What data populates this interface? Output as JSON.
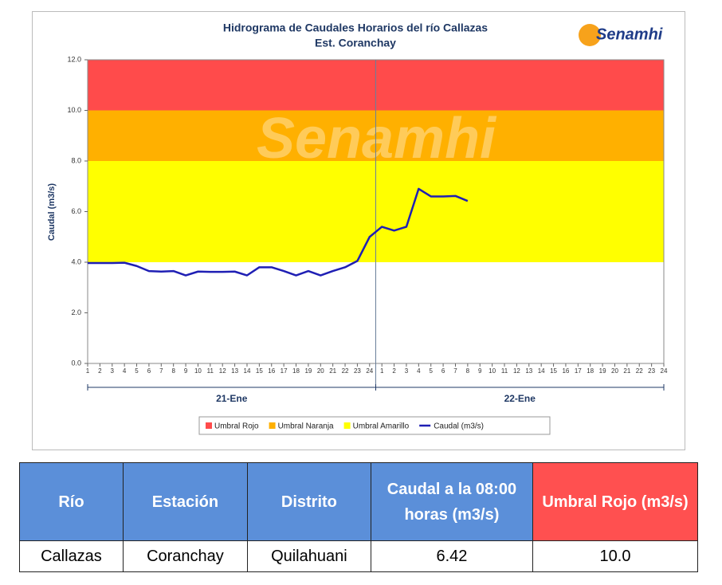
{
  "chart_data": {
    "type": "line",
    "title": "Hidrograma de Caudales Horarios del río Callazas",
    "subtitle": "Est. Coranchay",
    "logo": "Senamhi",
    "y_label": "Caudal (m3/s)",
    "categories": [
      "1",
      "2",
      "3",
      "4",
      "5",
      "6",
      "7",
      "8",
      "9",
      "10",
      "11",
      "12",
      "13",
      "14",
      "15",
      "16",
      "17",
      "18",
      "19",
      "20",
      "21",
      "22",
      "23",
      "24",
      "1",
      "2",
      "3",
      "4",
      "5",
      "6",
      "7",
      "8",
      "9",
      "10",
      "11",
      "12",
      "13",
      "14",
      "15",
      "16",
      "17",
      "18",
      "19",
      "20",
      "21",
      "22",
      "23",
      "24"
    ],
    "x_groups": [
      "21-Ene",
      "22-Ene"
    ],
    "ylim": [
      0,
      12
    ],
    "yticks": [
      {
        "value": 0,
        "label": "0.0"
      },
      {
        "value": 2,
        "label": "2.0"
      },
      {
        "value": 4,
        "label": "4.0"
      },
      {
        "value": 6,
        "label": "6.0"
      },
      {
        "value": 8,
        "label": "8.0"
      },
      {
        "value": 10,
        "label": "10.0"
      },
      {
        "value": 12,
        "label": "12.0"
      }
    ],
    "bands": [
      {
        "name": "Umbral Rojo",
        "color": "#ff4b4b",
        "from": 10,
        "to": 12
      },
      {
        "name": "Umbral Naranja",
        "color": "#ffb000",
        "from": 8,
        "to": 10
      },
      {
        "name": "Umbral Amarillo",
        "color": "#ffff00",
        "from": 4,
        "to": 8
      }
    ],
    "series": [
      {
        "name": "Caudal (m3/s)",
        "color": "#1f1fb4",
        "values": [
          3.97,
          3.97,
          3.97,
          3.98,
          3.85,
          3.65,
          3.63,
          3.65,
          3.48,
          3.63,
          3.62,
          3.62,
          3.63,
          3.48,
          3.8,
          3.8,
          3.65,
          3.48,
          3.65,
          3.48,
          3.65,
          3.8,
          4.05,
          5.0,
          5.4,
          5.25,
          5.4,
          6.9,
          6.6,
          6.6,
          6.62,
          6.42,
          null,
          null,
          null,
          null,
          null,
          null,
          null,
          null,
          null,
          null,
          null,
          null,
          null,
          null,
          null,
          null
        ]
      }
    ]
  },
  "table": {
    "headers": [
      "Río",
      "Estación",
      "Distrito",
      "Caudal a la 08:00 horas (m3/s)",
      "Umbral Rojo (m3/s)"
    ],
    "rows": [
      [
        "Callazas",
        "Coranchay",
        "Quilahuani",
        "6.42",
        "10.0"
      ]
    ]
  }
}
